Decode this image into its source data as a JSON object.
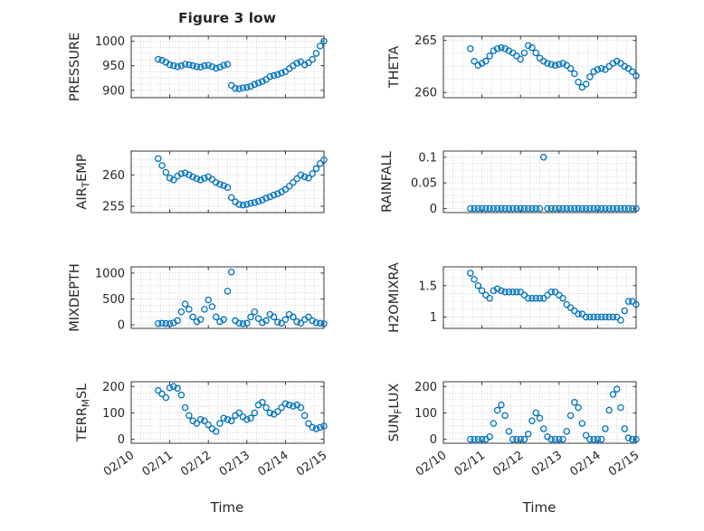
{
  "chart_data": {
    "type": "scatter",
    "title": "Figure 3 low",
    "xlabel": "Time",
    "marker": "o",
    "marker_color": "#0072BD",
    "axis_color": "#262626",
    "grid_color": "#c9c9c9",
    "x_unit": "days_after_02/10",
    "xlim": [
      0,
      5
    ],
    "xticks": [
      0,
      1,
      2,
      3,
      4,
      5
    ],
    "xtick_labels": [
      "02/10",
      "02/11",
      "02/12",
      "02/13",
      "02/14",
      "02/15"
    ],
    "x": [
      0.7,
      0.8,
      0.9,
      1.0,
      1.1,
      1.2,
      1.3,
      1.4,
      1.5,
      1.6,
      1.7,
      1.8,
      1.9,
      2.0,
      2.1,
      2.2,
      2.3,
      2.4,
      2.5,
      2.6,
      2.7,
      2.8,
      2.9,
      3.0,
      3.1,
      3.2,
      3.3,
      3.4,
      3.5,
      3.6,
      3.7,
      3.8,
      3.9,
      4.0,
      4.1,
      4.2,
      4.3,
      4.4,
      4.5,
      4.6,
      4.7,
      4.8,
      4.9,
      5.0
    ],
    "subplots": [
      {
        "name": "PRESSURE",
        "row": 0,
        "col": 0,
        "ylabel": "PRESSURE",
        "ylabel_parts": [
          {
            "t": "PRESSURE",
            "sub": false
          }
        ],
        "ylim": [
          885,
          1010
        ],
        "yticks": [
          900,
          950,
          1000
        ],
        "ytick_labels": [
          "900",
          "950",
          "1000"
        ],
        "values": [
          963,
          961,
          957,
          952,
          950,
          948,
          950,
          953,
          952,
          950,
          948,
          947,
          950,
          951,
          948,
          945,
          947,
          951,
          953,
          910,
          904,
          903,
          905,
          906,
          908,
          912,
          915,
          918,
          922,
          928,
          930,
          932,
          935,
          938,
          944,
          950,
          955,
          958,
          952,
          956,
          963,
          975,
          990,
          1000
        ]
      },
      {
        "name": "THETA",
        "row": 0,
        "col": 1,
        "ylabel": "THETA",
        "ylabel_parts": [
          {
            "t": "THETA",
            "sub": false
          }
        ],
        "ylim": [
          259.5,
          265.4
        ],
        "yticks": [
          260,
          265
        ],
        "ytick_labels": [
          "260",
          "265"
        ],
        "values": [
          264.2,
          263.0,
          262.6,
          262.8,
          263.0,
          263.5,
          264.0,
          264.2,
          264.3,
          264.2,
          264.0,
          263.8,
          263.5,
          263.2,
          263.8,
          264.5,
          264.3,
          263.8,
          263.3,
          263.0,
          262.8,
          262.7,
          262.6,
          262.7,
          262.8,
          262.6,
          262.3,
          261.8,
          261.0,
          260.5,
          260.8,
          261.5,
          262.0,
          262.2,
          262.3,
          262.2,
          262.5,
          262.8,
          263.0,
          262.8,
          262.5,
          262.3,
          262.0,
          261.6
        ]
      },
      {
        "name": "AIR_TEMP",
        "row": 1,
        "col": 0,
        "ylabel": "AIR_TEMP",
        "ylabel_parts": [
          {
            "t": "AIR",
            "sub": false
          },
          {
            "t": "T",
            "sub": true
          },
          {
            "t": "EMP",
            "sub": false
          }
        ],
        "ylim": [
          254,
          263.8
        ],
        "yticks": [
          255,
          260
        ],
        "ytick_labels": [
          "255",
          "260"
        ],
        "values": [
          262.6,
          261.5,
          260.4,
          259.5,
          259.2,
          259.8,
          260.2,
          260.3,
          260.0,
          259.7,
          259.4,
          259.2,
          259.5,
          259.7,
          259.3,
          258.8,
          258.5,
          258.3,
          258.0,
          256.4,
          255.7,
          255.3,
          255.2,
          255.3,
          255.5,
          255.6,
          255.8,
          256.0,
          256.3,
          256.5,
          256.8,
          257.0,
          257.3,
          257.7,
          258.2,
          258.8,
          259.4,
          260.0,
          259.7,
          259.5,
          260.2,
          261.0,
          261.8,
          262.4
        ]
      },
      {
        "name": "RAINFALL",
        "row": 1,
        "col": 1,
        "ylabel": "RAINFALL",
        "ylabel_parts": [
          {
            "t": "RAINFALL",
            "sub": false
          }
        ],
        "ylim": [
          -0.008,
          0.112
        ],
        "yticks": [
          0,
          0.05,
          0.1
        ],
        "ytick_labels": [
          "0",
          "0.05",
          "0.1"
        ],
        "values": [
          0,
          0,
          0,
          0,
          0,
          0,
          0,
          0,
          0,
          0,
          0,
          0,
          0,
          0,
          0,
          0,
          0,
          0,
          0,
          0.1,
          0,
          0,
          0,
          0,
          0,
          0,
          0,
          0,
          0,
          0,
          0,
          0,
          0,
          0,
          0,
          0,
          0,
          0,
          0,
          0,
          0,
          0,
          0,
          0
        ]
      },
      {
        "name": "MIXDEPTH",
        "row": 2,
        "col": 0,
        "ylabel": "MIXDEPTH",
        "ylabel_parts": [
          {
            "t": "MIXDEPTH",
            "sub": false
          }
        ],
        "ylim": [
          -70,
          1120
        ],
        "yticks": [
          0,
          500,
          1000
        ],
        "ytick_labels": [
          "0",
          "500",
          "1000"
        ],
        "values": [
          25,
          30,
          25,
          20,
          35,
          80,
          250,
          400,
          300,
          150,
          60,
          100,
          300,
          480,
          350,
          150,
          60,
          100,
          650,
          1020,
          80,
          30,
          20,
          30,
          150,
          250,
          120,
          40,
          80,
          200,
          150,
          50,
          30,
          100,
          200,
          150,
          60,
          30,
          100,
          150,
          80,
          40,
          30,
          20
        ]
      },
      {
        "name": "H2OMIXRA",
        "row": 2,
        "col": 1,
        "ylabel": "H2OMIXRA",
        "ylabel_parts": [
          {
            "t": "H2OMIXRA",
            "sub": false
          }
        ],
        "ylim": [
          0.82,
          1.8
        ],
        "yticks": [
          1,
          1.5
        ],
        "ytick_labels": [
          "1",
          "1.5"
        ],
        "values": [
          1.7,
          1.6,
          1.5,
          1.42,
          1.35,
          1.3,
          1.42,
          1.45,
          1.42,
          1.4,
          1.4,
          1.4,
          1.4,
          1.4,
          1.35,
          1.3,
          1.3,
          1.3,
          1.3,
          1.3,
          1.35,
          1.4,
          1.4,
          1.35,
          1.3,
          1.2,
          1.15,
          1.1,
          1.05,
          1.05,
          1.0,
          1.0,
          1.0,
          1.0,
          1.0,
          1.0,
          1.0,
          1.0,
          1.0,
          0.95,
          1.1,
          1.25,
          1.25,
          1.2
        ]
      },
      {
        "name": "TERR_MSL",
        "row": 3,
        "col": 0,
        "ylabel": "TERR_MSL",
        "ylabel_parts": [
          {
            "t": "TERR",
            "sub": false
          },
          {
            "t": "M",
            "sub": true
          },
          {
            "t": "SL",
            "sub": false
          }
        ],
        "ylim": [
          -15,
          218
        ],
        "yticks": [
          0,
          100,
          200
        ],
        "ytick_labels": [
          "0",
          "100",
          "200"
        ],
        "values": [
          185,
          172,
          158,
          195,
          200,
          193,
          168,
          120,
          90,
          70,
          60,
          75,
          70,
          55,
          40,
          30,
          60,
          80,
          75,
          70,
          90,
          100,
          85,
          75,
          80,
          100,
          130,
          140,
          120,
          100,
          95,
          105,
          120,
          135,
          130,
          125,
          130,
          120,
          90,
          60,
          45,
          40,
          45,
          50
        ]
      },
      {
        "name": "SUN_FLUX",
        "row": 3,
        "col": 1,
        "ylabel": "SUN_FLUX",
        "ylabel_parts": [
          {
            "t": "SUN",
            "sub": false
          },
          {
            "t": "F",
            "sub": true
          },
          {
            "t": "LUX",
            "sub": false
          }
        ],
        "ylim": [
          -15,
          218
        ],
        "yticks": [
          0,
          100,
          200
        ],
        "ytick_labels": [
          "0",
          "100",
          "200"
        ],
        "values": [
          0,
          0,
          0,
          0,
          0,
          10,
          60,
          110,
          130,
          90,
          30,
          0,
          0,
          0,
          0,
          20,
          70,
          100,
          80,
          40,
          10,
          0,
          0,
          0,
          0,
          30,
          90,
          140,
          120,
          60,
          15,
          0,
          0,
          0,
          0,
          40,
          110,
          170,
          190,
          120,
          40,
          5,
          0,
          0
        ]
      }
    ]
  }
}
